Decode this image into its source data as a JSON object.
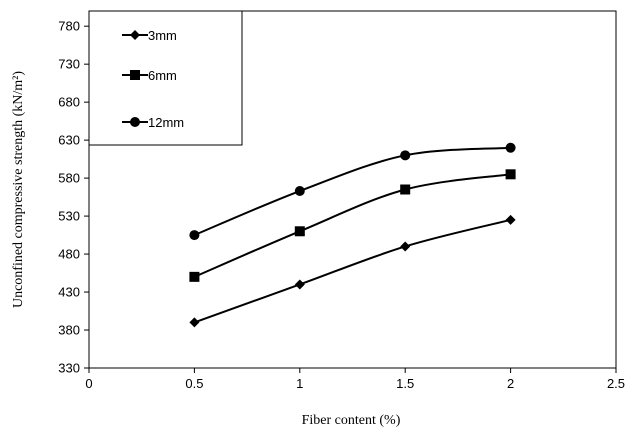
{
  "chart_data": {
    "type": "line",
    "xlabel": "Fiber content (%)",
    "ylabel": "Unconfined compressive strength (kN/m²)",
    "xlim": [
      0,
      2.5
    ],
    "ylim": [
      330,
      800
    ],
    "x_ticks": [
      0,
      0.5,
      1,
      1.5,
      2,
      2.5
    ],
    "x_tick_labels": [
      "0",
      "0.5",
      "1",
      "1.5",
      "2",
      "2.5"
    ],
    "y_ticks": [
      330,
      380,
      430,
      480,
      530,
      580,
      630,
      680,
      730,
      780
    ],
    "y_tick_labels": [
      "330",
      "380",
      "430",
      "480",
      "530",
      "580",
      "630",
      "680",
      "730",
      "780"
    ],
    "grid": false,
    "legend_position": "top-left",
    "series": [
      {
        "name": "3mm",
        "marker": "diamond",
        "x": [
          0.5,
          1,
          1.5,
          2
        ],
        "values": [
          390,
          440,
          490,
          525
        ]
      },
      {
        "name": "6mm",
        "marker": "square",
        "x": [
          0.5,
          1,
          1.5,
          2
        ],
        "values": [
          450,
          510,
          565,
          585
        ]
      },
      {
        "name": "12mm",
        "marker": "circle",
        "x": [
          0.5,
          1,
          1.5,
          2
        ],
        "values": [
          505,
          563,
          610,
          620
        ]
      }
    ],
    "line_color": "#000000"
  }
}
